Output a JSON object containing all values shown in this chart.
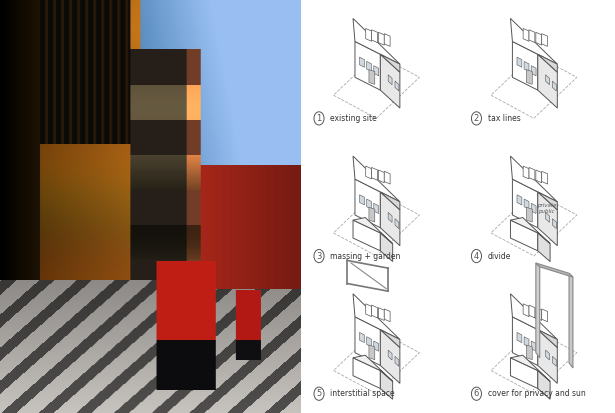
{
  "panels": [
    {
      "num": "1",
      "label": "existing site",
      "col": 0,
      "row": 0
    },
    {
      "num": "2",
      "label": "tax lines",
      "col": 1,
      "row": 0
    },
    {
      "num": "3",
      "label": "massing + garden",
      "col": 0,
      "row": 1
    },
    {
      "num": "4",
      "label": "divide",
      "col": 1,
      "row": 1
    },
    {
      "num": "5",
      "label": "interstitial space",
      "col": 0,
      "row": 2
    },
    {
      "num": "6",
      "label": "cover for privacy and sun",
      "col": 1,
      "row": 2
    }
  ],
  "panel_label_fontsize": 5.5,
  "panel_num_fontsize": 6,
  "diagram_line_color": "#555555",
  "diagram_dashed_color": "#aaaaaa",
  "background_color": "#ffffff"
}
